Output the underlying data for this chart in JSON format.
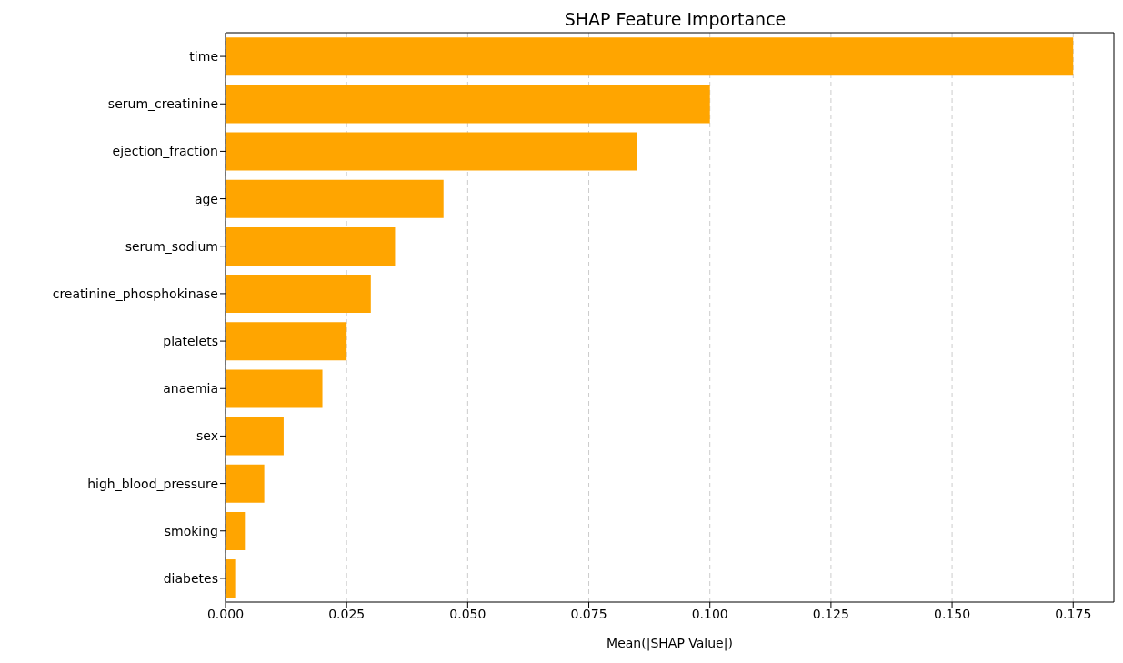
{
  "chart_data": {
    "type": "bar",
    "orientation": "horizontal",
    "title": "SHAP Feature Importance",
    "xlabel": "Mean(|SHAP Value|)",
    "categories": [
      "time",
      "serum_creatinine",
      "ejection_fraction",
      "age",
      "serum_sodium",
      "creatinine_phosphokinase",
      "platelets",
      "anaemia",
      "sex",
      "high_blood_pressure",
      "smoking",
      "diabetes"
    ],
    "values": [
      0.175,
      0.1,
      0.085,
      0.045,
      0.035,
      0.03,
      0.025,
      0.02,
      0.012,
      0.008,
      0.004,
      0.002
    ],
    "color": "#ffa500",
    "xlim": [
      0,
      0.1834
    ],
    "xticks": [
      {
        "value": 0,
        "label": "0.000"
      },
      {
        "value": 0.025,
        "label": "0.025"
      },
      {
        "value": 0.05,
        "label": "0.050"
      },
      {
        "value": 0.075,
        "label": "0.075"
      },
      {
        "value": 0.1,
        "label": "0.100"
      },
      {
        "value": 0.125,
        "label": "0.125"
      },
      {
        "value": 0.15,
        "label": "0.150"
      },
      {
        "value": 0.175,
        "label": "0.175"
      }
    ],
    "grid": "x",
    "line_style": "dashed"
  }
}
